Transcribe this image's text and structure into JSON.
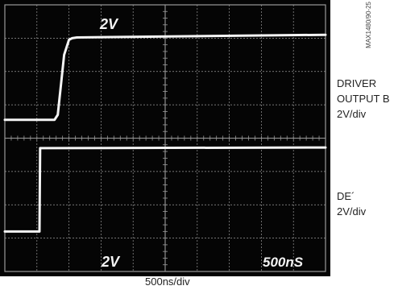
{
  "chart_data": {
    "type": "line",
    "title": "",
    "xlabel": "500ns/div",
    "ylabel": "",
    "screen_annotations": {
      "top_scale": "2V",
      "bottom_scale": "2V",
      "time_scale": "500nS"
    },
    "grid": true,
    "divisions": {
      "x": 10,
      "y": 8
    },
    "xlim": [
      0,
      10
    ],
    "ylim": [
      0,
      8
    ],
    "series": [
      {
        "name": "DRIVER OUTPUT B",
        "scale": "2V/div",
        "x": [
          0,
          1.55,
          1.65,
          1.85,
          2.0,
          2.1,
          2.25,
          10
        ],
        "y": [
          4.55,
          4.55,
          4.7,
          6.5,
          6.95,
          7.0,
          7.02,
          7.1
        ]
      },
      {
        "name": "DE´",
        "scale": "2V/div",
        "x": [
          0,
          1.08,
          1.1,
          10
        ],
        "y": [
          1.2,
          1.2,
          3.7,
          3.72
        ]
      }
    ]
  },
  "labels": {
    "ch1_line1": "DRIVER",
    "ch1_line2": "OUTPUT B",
    "ch1_scale": "2V/div",
    "ch2_line1": "DE´",
    "ch2_scale": "2V/div",
    "figure_id": "MAX1480/90-25"
  },
  "colors": {
    "screen": "#050505",
    "grid": "#9a9a9a",
    "trace": "#f4f4f4"
  }
}
